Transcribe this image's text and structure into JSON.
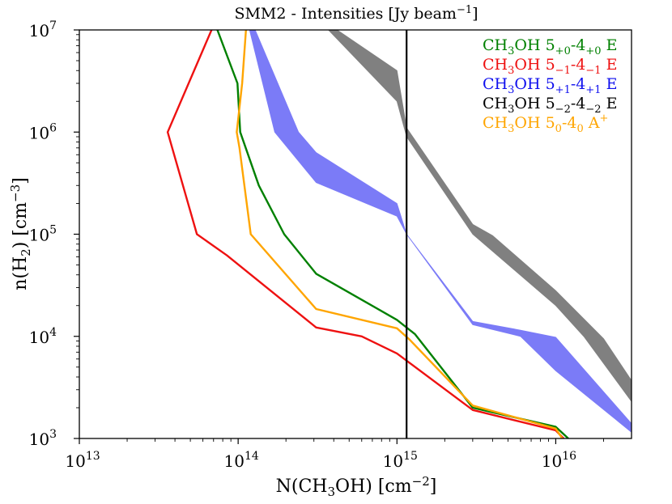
{
  "chart_data": {
    "type": "area",
    "title": "SMM2 - Intensities [Jy beam^-1]",
    "title_parts": {
      "main": "SMM2 - Intensities [Jy beam",
      "sup": "−1",
      "end": "]"
    },
    "xlabel": "N(CH3OH) [cm^-2]",
    "xlabel_parts": {
      "a": "N(CH",
      "sub": "3",
      "b": "OH) [cm",
      "sup": "−2",
      "c": "]"
    },
    "ylabel": "n(H2) [cm^-3]",
    "ylabel_parts": {
      "a": "n(H",
      "sub": "2",
      "b": ") [cm",
      "sup": "−3",
      "c": "]"
    },
    "xscale": "log",
    "yscale": "log",
    "xlim": [
      10000000000000.0,
      3e+16
    ],
    "ylim": [
      1000.0,
      10000000.0
    ],
    "x_ticks": [
      {
        "value": 10000000000000.0,
        "base": "10",
        "exp": "13"
      },
      {
        "value": 100000000000000.0,
        "base": "10",
        "exp": "14"
      },
      {
        "value": 1000000000000000.0,
        "base": "10",
        "exp": "15"
      },
      {
        "value": 1e+16,
        "base": "10",
        "exp": "16"
      }
    ],
    "y_ticks": [
      {
        "value": 1000.0,
        "base": "10",
        "exp": "3"
      },
      {
        "value": 10000.0,
        "base": "10",
        "exp": "4"
      },
      {
        "value": 100000.0,
        "base": "10",
        "exp": "5"
      },
      {
        "value": 1000000.0,
        "base": "10",
        "exp": "6"
      },
      {
        "value": 10000000.0,
        "base": "10",
        "exp": "7"
      }
    ],
    "vertical_line": {
      "x": 1150000000000000.0,
      "color": "#000000"
    },
    "series": [
      {
        "name": "CH3OH 5+0-4+0 E",
        "kind": "line",
        "color": "#008000",
        "label": {
          "a": "CH",
          "s1": "3",
          "b": "OH 5",
          "s2": "+0",
          "c": "-4",
          "s3": "+0",
          "d": " E"
        },
        "points": [
          [
            74000000000000.0,
            10000000.0
          ],
          [
            99000000000000.0,
            3000000.0
          ],
          [
            103000000000000.0,
            1000000.0
          ],
          [
            135000000000000.0,
            300000.0
          ],
          [
            195000000000000.0,
            100000.0
          ],
          [
            310000000000000.0,
            41000.0
          ],
          [
            1000000000000000.0,
            14500.0
          ],
          [
            1300000000000000.0,
            10500.0
          ],
          [
            3000000000000000.0,
            2000.0
          ],
          [
            1e+16,
            1300.0
          ],
          [
            1.2e+16,
            1000.0
          ]
        ]
      },
      {
        "name": "CH3OH 5-1-4-1 E",
        "kind": "line",
        "color": "#ee1111",
        "label": {
          "a": "CH",
          "s1": "3",
          "b": "OH 5",
          "s2": "−1",
          "c": "-4",
          "s3": "−1",
          "d": " E"
        },
        "points": [
          [
            68000000000000.0,
            10000000.0
          ],
          [
            36000000000000.0,
            1000000.0
          ],
          [
            55000000000000.0,
            100000.0
          ],
          [
            85000000000000.0,
            62000.0
          ],
          [
            310000000000000.0,
            12200.0
          ],
          [
            600000000000000.0,
            10000.0
          ],
          [
            1000000000000000.0,
            6800.0
          ],
          [
            3000000000000000.0,
            1900.0
          ],
          [
            1e+16,
            1200.0
          ],
          [
            1.12e+16,
            1000.0
          ]
        ]
      },
      {
        "name": "CH3OH 5+1-4+1 E",
        "kind": "band",
        "color": "#7b7bf7",
        "label": {
          "a": "CH",
          "s1": "3",
          "b": "OH 5",
          "s2": "+1",
          "c": "-4",
          "s3": "+1",
          "d": " E"
        },
        "upper": [
          [
            128000000000000.0,
            10000000.0
          ],
          [
            240000000000000.0,
            1000000.0
          ],
          [
            310000000000000.0,
            630000.0
          ],
          [
            1000000000000000.0,
            200000.0
          ],
          [
            1150000000000000.0,
            100000.0
          ],
          [
            3000000000000000.0,
            14000.0
          ],
          [
            6000000000000000.0,
            11500.0
          ],
          [
            1e+16,
            9800.0
          ],
          [
            3e+16,
            1400.0
          ]
        ],
        "lower": [
          [
            118000000000000.0,
            10000000.0
          ],
          [
            170000000000000.0,
            1000000.0
          ],
          [
            310000000000000.0,
            320000.0
          ],
          [
            1000000000000000.0,
            150000.0
          ],
          [
            1150000000000000.0,
            100000.0
          ],
          [
            3000000000000000.0,
            13000.0
          ],
          [
            6000000000000000.0,
            10000.0
          ],
          [
            1e+16,
            4600.0
          ],
          [
            3e+16,
            1150.0
          ]
        ]
      },
      {
        "name": "CH3OH 5-2-4-2 E",
        "kind": "band",
        "color": "#808080",
        "label": {
          "a": "CH",
          "s1": "3",
          "b": "OH 5",
          "s2": "−2",
          "c": "-4",
          "s3": "−2",
          "d": " E"
        },
        "upper": [
          [
            420000000000000.0,
            10000000.0
          ],
          [
            1000000000000000.0,
            4000000.0
          ],
          [
            1150000000000000.0,
            1100000.0
          ],
          [
            3000000000000000.0,
            125000.0
          ],
          [
            4000000000000000.0,
            97000.0
          ],
          [
            1e+16,
            28000.0
          ],
          [
            2e+16,
            9500.0
          ],
          [
            3e+16,
            3700.0
          ]
        ],
        "lower": [
          [
            370000000000000.0,
            10000000.0
          ],
          [
            1000000000000000.0,
            2000000.0
          ],
          [
            1150000000000000.0,
            900000.0
          ],
          [
            3000000000000000.0,
            100000.0
          ],
          [
            1e+16,
            20000.0
          ],
          [
            1.5e+16,
            10000.0
          ],
          [
            3e+16,
            2300.0
          ]
        ]
      },
      {
        "name": "CH3OH 50-40 A+",
        "kind": "line",
        "color": "#ffa500",
        "label": {
          "a": "CH",
          "s1": "3",
          "b": "OH 5",
          "s2": "0",
          "c": "-4",
          "s3": "0",
          "d": " A",
          "sup": "+"
        },
        "points": [
          [
            112000000000000.0,
            10000000.0
          ],
          [
            106000000000000.0,
            3000000.0
          ],
          [
            98000000000000.0,
            1000000.0
          ],
          [
            102000000000000.0,
            700000.0
          ],
          [
            120000000000000.0,
            100000.0
          ],
          [
            310000000000000.0,
            18500.0
          ],
          [
            1000000000000000.0,
            12000.0
          ],
          [
            1200000000000000.0,
            9300.0
          ],
          [
            3000000000000000.0,
            2100.0
          ],
          [
            1e+16,
            1250.0
          ],
          [
            1.1e+16,
            1000.0
          ]
        ]
      }
    ]
  }
}
